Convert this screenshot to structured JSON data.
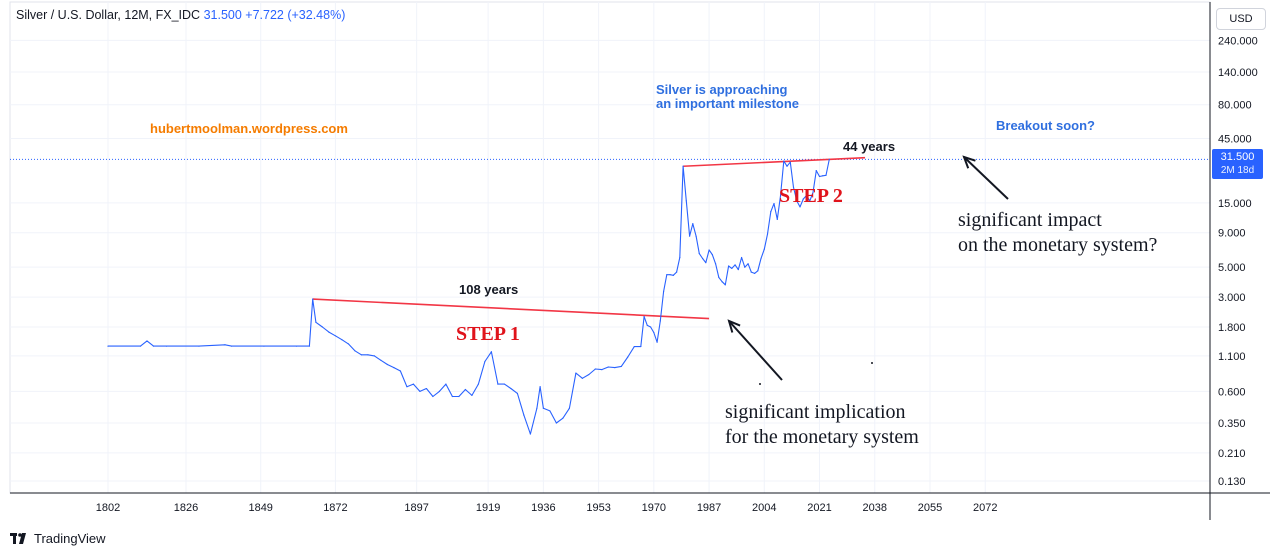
{
  "header": {
    "symbol": "Silver / U.S. Dollar, 12M, FX_IDC",
    "price": "31.500",
    "change": "+7.722 (+32.48%)"
  },
  "currency_button": "USD",
  "price_label": {
    "value": "31.500",
    "countdown": "2M 18d"
  },
  "footer": {
    "brand": "TradingView"
  },
  "annotations": {
    "site": "hubertmoolman.wordpress.com",
    "milestone_line1": "Silver is approaching",
    "milestone_line2": "an important milestone",
    "breakout": "Breakout soon?",
    "years_44": "44 years",
    "years_108": "108 years",
    "step1": "STEP 1",
    "step2": "STEP 2",
    "impact_line1": "significant impact",
    "impact_line2": "on the monetary system?",
    "implication_line1": "significant implication",
    "implication_line2": "for the monetary system"
  },
  "colors": {
    "line": "#2962ff",
    "trendline": "#f23645",
    "step_text": "#e0131b",
    "site_text": "#f57c00",
    "annotation_blue": "#2f6fdf",
    "price_label_bg": "#2962ff"
  },
  "chart_data": {
    "type": "line",
    "y_scale": "log",
    "y_ticks": [
      "240.000",
      "140.000",
      "80.000",
      "45.000",
      "15.000",
      "9.000",
      "5.000",
      "3.000",
      "1.800",
      "1.100",
      "0.600",
      "0.350",
      "0.210",
      "0.130"
    ],
    "x_ticks": [
      "1802",
      "1826",
      "1849",
      "1872",
      "1897",
      "1919",
      "1936",
      "1953",
      "1970",
      "1987",
      "2004",
      "2021",
      "2038",
      "2055",
      "2072"
    ],
    "current_price": 31.5,
    "grid": true,
    "series": [
      {
        "points": [
          [
            1802,
            1.3
          ],
          [
            1812,
            1.3
          ],
          [
            1814,
            1.42
          ],
          [
            1816,
            1.3
          ],
          [
            1820,
            1.3
          ],
          [
            1830,
            1.3
          ],
          [
            1838,
            1.33
          ],
          [
            1840,
            1.3
          ],
          [
            1850,
            1.3
          ],
          [
            1860,
            1.3
          ],
          [
            1864,
            1.3
          ],
          [
            1865,
            2.9
          ],
          [
            1866,
            1.95
          ],
          [
            1868,
            1.8
          ],
          [
            1870,
            1.65
          ],
          [
            1872,
            1.55
          ],
          [
            1874,
            1.45
          ],
          [
            1876,
            1.35
          ],
          [
            1878,
            1.2
          ],
          [
            1880,
            1.12
          ],
          [
            1882,
            1.12
          ],
          [
            1884,
            1.1
          ],
          [
            1886,
            1.02
          ],
          [
            1888,
            0.95
          ],
          [
            1890,
            0.9
          ],
          [
            1892,
            0.85
          ],
          [
            1894,
            0.65
          ],
          [
            1896,
            0.68
          ],
          [
            1898,
            0.6
          ],
          [
            1900,
            0.63
          ],
          [
            1902,
            0.55
          ],
          [
            1904,
            0.6
          ],
          [
            1906,
            0.68
          ],
          [
            1908,
            0.55
          ],
          [
            1910,
            0.55
          ],
          [
            1912,
            0.62
          ],
          [
            1914,
            0.56
          ],
          [
            1916,
            0.68
          ],
          [
            1918,
            1.0
          ],
          [
            1920,
            1.18
          ],
          [
            1922,
            0.68
          ],
          [
            1924,
            0.68
          ],
          [
            1926,
            0.63
          ],
          [
            1928,
            0.58
          ],
          [
            1930,
            0.4
          ],
          [
            1932,
            0.29
          ],
          [
            1934,
            0.45
          ],
          [
            1935,
            0.65
          ],
          [
            1936,
            0.45
          ],
          [
            1938,
            0.43
          ],
          [
            1940,
            0.35
          ],
          [
            1942,
            0.38
          ],
          [
            1944,
            0.45
          ],
          [
            1946,
            0.82
          ],
          [
            1948,
            0.75
          ],
          [
            1950,
            0.8
          ],
          [
            1952,
            0.88
          ],
          [
            1954,
            0.87
          ],
          [
            1956,
            0.91
          ],
          [
            1958,
            0.9
          ],
          [
            1960,
            0.92
          ],
          [
            1962,
            1.08
          ],
          [
            1964,
            1.29
          ],
          [
            1966,
            1.29
          ],
          [
            1967,
            2.15
          ],
          [
            1968,
            1.85
          ],
          [
            1969,
            1.8
          ],
          [
            1970,
            1.64
          ],
          [
            1971,
            1.39
          ],
          [
            1972,
            2.0
          ],
          [
            1973,
            3.3
          ],
          [
            1974,
            4.4
          ],
          [
            1975,
            4.4
          ],
          [
            1976,
            4.35
          ],
          [
            1977,
            4.6
          ],
          [
            1978,
            5.9
          ],
          [
            1979,
            28.0
          ],
          [
            1980,
            15.5
          ],
          [
            1981,
            8.5
          ],
          [
            1982,
            10.5
          ],
          [
            1983,
            8.5
          ],
          [
            1984,
            6.3
          ],
          [
            1985,
            5.8
          ],
          [
            1986,
            5.4
          ],
          [
            1987,
            6.7
          ],
          [
            1988,
            6.2
          ],
          [
            1989,
            5.3
          ],
          [
            1990,
            4.2
          ],
          [
            1991,
            3.9
          ],
          [
            1992,
            3.7
          ],
          [
            1993,
            5.1
          ],
          [
            1994,
            4.9
          ],
          [
            1995,
            5.2
          ],
          [
            1996,
            4.8
          ],
          [
            1997,
            5.9
          ],
          [
            1998,
            5.0
          ],
          [
            1999,
            5.3
          ],
          [
            2000,
            4.6
          ],
          [
            2001,
            4.5
          ],
          [
            2002,
            4.7
          ],
          [
            2003,
            5.8
          ],
          [
            2004,
            6.8
          ],
          [
            2005,
            8.8
          ],
          [
            2006,
            12.9
          ],
          [
            2007,
            14.8
          ],
          [
            2008,
            11.3
          ],
          [
            2009,
            16.9
          ],
          [
            2010,
            30.6
          ],
          [
            2011,
            28.0
          ],
          [
            2012,
            30.0
          ],
          [
            2013,
            19.5
          ],
          [
            2014,
            15.5
          ],
          [
            2015,
            14.0
          ],
          [
            2016,
            16.0
          ],
          [
            2017,
            17.0
          ],
          [
            2018,
            15.5
          ],
          [
            2019,
            17.9
          ],
          [
            2020,
            26.0
          ],
          [
            2021,
            23.5
          ],
          [
            2022,
            23.8
          ],
          [
            2023,
            24.0
          ],
          [
            2024,
            31.5
          ]
        ]
      }
    ]
  }
}
